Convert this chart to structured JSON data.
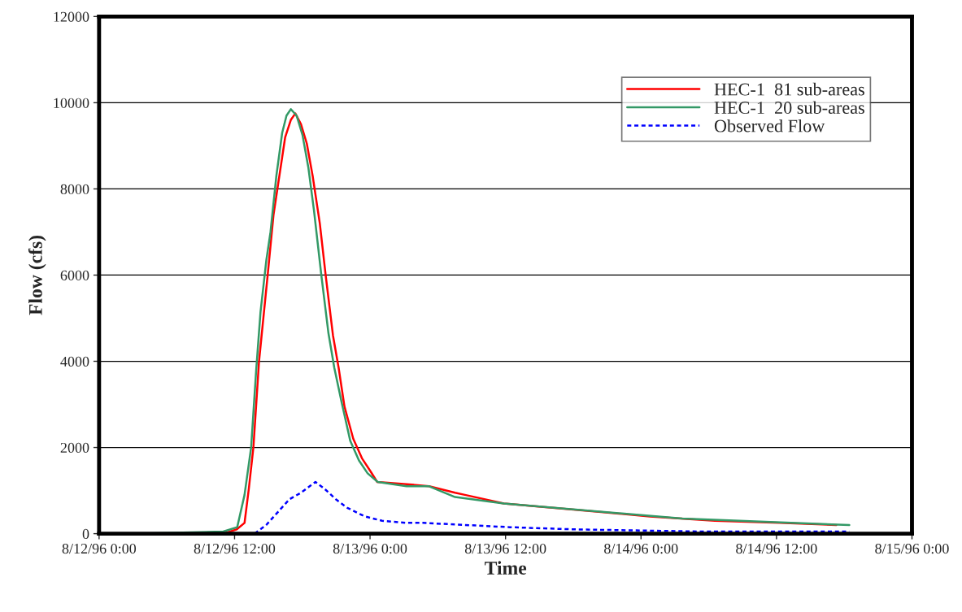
{
  "chart_data": {
    "type": "line",
    "xlabel": "Time",
    "ylabel": "Flow (cfs)",
    "xlim": [
      "1996-08-12T00:00",
      "1996-08-15T00:00"
    ],
    "xticks": [
      {
        "value": "1996-08-12T00:00",
        "label": "8/12/96 0:00"
      },
      {
        "value": "1996-08-12T12:00",
        "label": "8/12/96 12:00"
      },
      {
        "value": "1996-08-13T00:00",
        "label": "8/13/96 0:00"
      },
      {
        "value": "1996-08-13T12:00",
        "label": "8/13/96 12:00"
      },
      {
        "value": "1996-08-14T00:00",
        "label": "8/14/96 0:00"
      },
      {
        "value": "1996-08-14T12:00",
        "label": "8/14/96 12:00"
      },
      {
        "value": "1996-08-15T00:00",
        "label": "8/15/96 0:00"
      }
    ],
    "ylim": [
      0,
      12000
    ],
    "yticks": [
      0,
      2000,
      4000,
      6000,
      8000,
      10000,
      12000
    ],
    "grid": "y",
    "legend": "top right",
    "marker": "none",
    "series": [
      {
        "name": "HEC-1  81 sub-areas",
        "color": "#ff0000",
        "line_style": "solid",
        "x": [
          "1996-08-12T03:42",
          "1996-08-12T11:00",
          "1996-08-12T12:12",
          "1996-08-12T12:53",
          "1996-08-12T13:16",
          "1996-08-12T13:40",
          "1996-08-12T14:10",
          "1996-08-12T14:33",
          "1996-08-12T14:56",
          "1996-08-12T15:27",
          "1996-08-12T15:58",
          "1996-08-12T16:29",
          "1996-08-12T16:59",
          "1996-08-12T17:23",
          "1996-08-12T17:53",
          "1996-08-12T18:24",
          "1996-08-12T18:55",
          "1996-08-12T19:33",
          "1996-08-12T20:04",
          "1996-08-12T20:43",
          "1996-08-12T21:13",
          "1996-08-12T21:44",
          "1996-08-12T22:31",
          "1996-08-12T23:17",
          "1996-08-13T00:02",
          "1996-08-13T00:38",
          "1996-08-13T03:14",
          "1996-08-13T05:14",
          "1996-08-13T07:32",
          "1996-08-13T08:24",
          "1996-08-13T11:51",
          "1996-08-13T16:10",
          "1996-08-13T20:28",
          "1996-08-14T00:47",
          "1996-08-14T06:32",
          "1996-08-14T12:16",
          "1996-08-14T17:18"
        ],
        "values": [
          0,
          0,
          100,
          250,
          1050,
          2000,
          4000,
          5000,
          6000,
          7400,
          8300,
          9200,
          9600,
          9750,
          9500,
          9050,
          8300,
          7200,
          6000,
          4600,
          3850,
          2950,
          2200,
          1750,
          1450,
          1200,
          1150,
          1100,
          950,
          900,
          700,
          600,
          500,
          400,
          300,
          250,
          200
        ]
      },
      {
        "name": "HEC-1  20 sub-areas",
        "color": "#339966",
        "line_style": "solid",
        "x": [
          "1996-08-12T03:42",
          "1996-08-12T11:00",
          "1996-08-12T12:14",
          "1996-08-12T12:53",
          "1996-08-12T13:28",
          "1996-08-12T13:55",
          "1996-08-12T14:18",
          "1996-08-12T14:49",
          "1996-08-12T15:11",
          "1996-08-12T15:42",
          "1996-08-12T16:13",
          "1996-08-12T16:36",
          "1996-08-12T16:59",
          "1996-08-12T17:30",
          "1996-08-12T18:01",
          "1996-08-12T18:32",
          "1996-08-12T19:02",
          "1996-08-12T19:41",
          "1996-08-12T20:19",
          "1996-08-12T20:50",
          "1996-08-12T21:29",
          "1996-08-12T22:15",
          "1996-08-12T23:01",
          "1996-08-12T23:47",
          "1996-08-13T00:41",
          "1996-08-13T03:14",
          "1996-08-13T05:14",
          "1996-08-13T07:32",
          "1996-08-13T11:51",
          "1996-08-14T03:39",
          "1996-08-14T18:27"
        ],
        "values": [
          0,
          50,
          150,
          900,
          2000,
          3800,
          5150,
          6350,
          7000,
          8300,
          9300,
          9700,
          9850,
          9700,
          9250,
          8500,
          7500,
          6000,
          4650,
          3850,
          3050,
          2150,
          1700,
          1400,
          1200,
          1100,
          1100,
          850,
          700,
          350,
          200
        ]
      },
      {
        "name": "Observed Flow",
        "color": "#0000ff",
        "line_style": "dotted",
        "x": [
          "1996-08-12T03:42",
          "1996-08-12T10:42",
          "1996-08-12T13:47",
          "1996-08-12T14:48",
          "1996-08-12T15:50",
          "1996-08-12T16:52",
          "1996-08-12T17:53",
          "1996-08-12T19:10",
          "1996-08-12T19:56",
          "1996-08-12T20:58",
          "1996-08-12T21:59",
          "1996-08-12T23:32",
          "1996-08-13T01:04",
          "1996-08-13T03:08",
          "1996-08-13T04:42",
          "1996-08-13T12:24",
          "1996-08-13T18:00",
          "1996-08-14T05:12",
          "1996-08-14T18:27"
        ],
        "values": [
          0,
          0,
          0,
          200,
          500,
          800,
          950,
          1200,
          1050,
          800,
          600,
          400,
          300,
          250,
          250,
          150,
          100,
          50,
          50
        ]
      }
    ]
  }
}
